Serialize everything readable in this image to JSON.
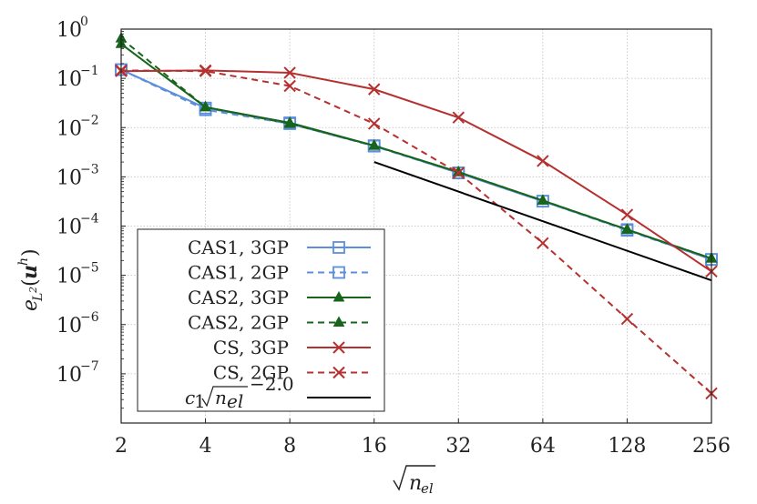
{
  "chart_data": {
    "type": "line",
    "xscale": "log2",
    "yscale": "log10",
    "xlabel": "√n_el",
    "ylabel": "e_L²(u^h)",
    "x_ticks": [
      2,
      4,
      8,
      16,
      32,
      64,
      128,
      256
    ],
    "x_tick_labels": [
      "2",
      "4",
      "8",
      "16",
      "32",
      "64",
      "128",
      "256"
    ],
    "y_tick_labels": [
      {
        "base": "10",
        "exp": "0"
      },
      {
        "base": "10",
        "exp": "−1"
      },
      {
        "base": "10",
        "exp": "−2"
      },
      {
        "base": "10",
        "exp": "−3"
      },
      {
        "base": "10",
        "exp": "−4"
      },
      {
        "base": "10",
        "exp": "−5"
      },
      {
        "base": "10",
        "exp": "−6"
      },
      {
        "base": "10",
        "exp": "−7"
      }
    ],
    "y_tick_exponents": [
      0,
      -1,
      -2,
      -3,
      -4,
      -5,
      -6,
      -7
    ],
    "xlim": [
      2,
      256
    ],
    "ylim_exp": [
      -8,
      0
    ],
    "grid": true,
    "legend_position": "lower-left",
    "series": [
      {
        "name": "CAS1, 3GP",
        "color": "#5b8fdc",
        "dash": "solid",
        "marker": "square",
        "x": [
          2,
          4,
          8,
          16,
          32,
          64,
          128,
          256
        ],
        "y": [
          0.15,
          0.025,
          0.0125,
          0.0043,
          0.0012,
          0.00032,
          8.5e-05,
          2.1e-05
        ]
      },
      {
        "name": "CAS1, 2GP",
        "color": "#5b8fdc",
        "dash": "dashed",
        "marker": "square",
        "x": [
          2,
          4,
          8,
          16,
          32,
          64,
          128,
          256
        ],
        "y": [
          0.15,
          0.023,
          0.012,
          0.0042,
          0.0012,
          0.00032,
          8.2e-05,
          2.1e-05
        ]
      },
      {
        "name": "CAS2, 3GP",
        "color": "#16651a",
        "dash": "solid",
        "marker": "triangle",
        "x": [
          2,
          4,
          8,
          16,
          32,
          64,
          128,
          256
        ],
        "y": [
          0.5,
          0.026,
          0.0125,
          0.0043,
          0.00125,
          0.00033,
          8.5e-05,
          2.2e-05
        ]
      },
      {
        "name": "CAS2, 2GP",
        "color": "#16651a",
        "dash": "dashed",
        "marker": "triangle",
        "x": [
          2,
          4,
          8,
          16,
          32,
          64,
          128,
          256
        ],
        "y": [
          0.65,
          0.026,
          0.012,
          0.0043,
          0.00125,
          0.00033,
          8.5e-05,
          2.2e-05
        ]
      },
      {
        "name": "CS, 3GP",
        "color": "#b5302f",
        "dash": "solid",
        "marker": "x",
        "x": [
          2,
          4,
          8,
          16,
          32,
          64,
          128,
          256
        ],
        "y": [
          0.14,
          0.145,
          0.13,
          0.06,
          0.016,
          0.0021,
          0.00017,
          1.2e-05
        ]
      },
      {
        "name": "CS, 2GP",
        "color": "#b5302f",
        "dash": "dashed",
        "marker": "x",
        "x": [
          2,
          4,
          8,
          16,
          32,
          64,
          128,
          256
        ],
        "y": [
          0.145,
          0.14,
          0.07,
          0.012,
          0.0012,
          4.5e-05,
          1.3e-06,
          4e-08
        ]
      },
      {
        "name": "c1 √n_el ^(−2.0)",
        "color": "#000000",
        "dash": "solid",
        "marker": "none",
        "x": [
          16,
          256
        ],
        "y": [
          0.002,
          7.9e-06
        ]
      }
    ]
  }
}
